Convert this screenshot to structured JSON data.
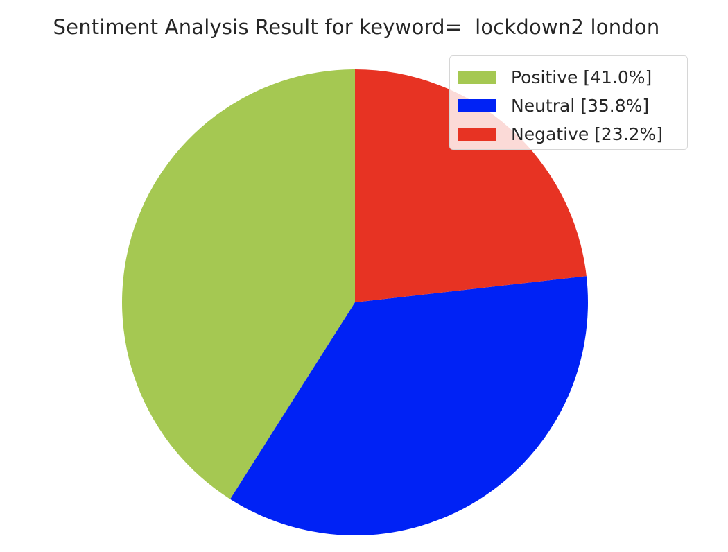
{
  "chart_data": {
    "type": "pie",
    "title": "Sentiment Analysis Result for keyword=  lockdown2 london",
    "slices": [
      {
        "label": "Positive",
        "value": 41.0,
        "color": "#a5c852"
      },
      {
        "label": "Neutral",
        "value": 35.8,
        "color": "#0022f5"
      },
      {
        "label": "Negative",
        "value": 23.2,
        "color": "#e73323"
      }
    ],
    "start_angle_deg": 90,
    "direction": "counterclockwise",
    "legend": {
      "placement": "upper right",
      "entries": [
        {
          "label": "Positive [41.0%]",
          "color": "#a5c852"
        },
        {
          "label": "Neutral [35.8%]",
          "color": "#0022f5"
        },
        {
          "label": "Negative [23.2%]",
          "color": "#e73323"
        }
      ]
    }
  }
}
